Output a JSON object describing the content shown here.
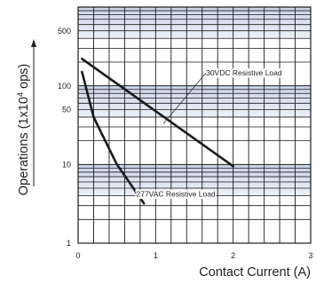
{
  "chart_data": {
    "type": "line",
    "xlabel": "Contact Current (A)",
    "ylabel": "Operations (1x10",
    "ylabel_sup": "4",
    "ylabel_suffix": " ops)",
    "xscale": "linear",
    "yscale": "log",
    "xlim": [
      0,
      3
    ],
    "ylim": [
      1,
      1000
    ],
    "x_ticks": [
      {
        "v": 0,
        "label": "0"
      },
      {
        "v": 1,
        "label": "1"
      },
      {
        "v": 2,
        "label": "2"
      },
      {
        "v": 3,
        "label": "3"
      }
    ],
    "y_ticks": [
      {
        "v": 1,
        "label": "1"
      },
      {
        "v": 10,
        "label": "10"
      },
      {
        "v": 50,
        "label": "50"
      },
      {
        "v": 100,
        "label": "100"
      },
      {
        "v": 500,
        "label": "500"
      }
    ],
    "grid": true,
    "series": [
      {
        "name": "30VDC Resistive Load",
        "color": "#1a1a1a",
        "points": [
          [
            0.05,
            220
          ],
          [
            2.0,
            9.5
          ]
        ]
      },
      {
        "name": "277VAC  Resistive Load",
        "color": "#1a1a1a",
        "points": [
          [
            0.05,
            150
          ],
          [
            0.2,
            40
          ],
          [
            0.5,
            10
          ],
          [
            0.85,
            3.2
          ]
        ]
      }
    ],
    "annotations": [
      {
        "series": 0,
        "text": "30VDC Resistive Load",
        "target": [
          1.1,
          33
        ],
        "label_at": [
          1.65,
          135
        ]
      },
      {
        "series": 1,
        "text": "277VAC  Resistive Load",
        "target": [
          0.6,
          7
        ],
        "label_at": [
          0.75,
          3.9
        ]
      }
    ],
    "colors": {
      "grid": "#1c1c1c",
      "band": "#c9d3ea",
      "band_dark": "#9aabd4",
      "line": "#1a1a1a"
    }
  }
}
